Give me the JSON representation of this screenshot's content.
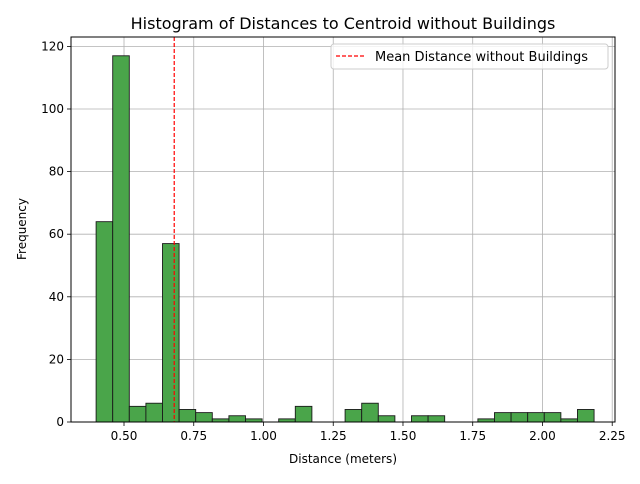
{
  "chart_data": {
    "type": "bar",
    "title": "Histogram of Distances to Centroid without Buildings",
    "xlabel": "Distance (meters)",
    "ylabel": "Frequency",
    "xlim": [
      0.31,
      2.26
    ],
    "ylim": [
      0,
      123
    ],
    "xticks": [
      0.5,
      0.75,
      1.0,
      1.25,
      1.5,
      1.75,
      2.0,
      2.25
    ],
    "xtick_labels": [
      "0.50",
      "0.75",
      "1.00",
      "1.25",
      "1.50",
      "1.75",
      "2.00",
      "2.25"
    ],
    "yticks": [
      0,
      20,
      40,
      60,
      80,
      100,
      120
    ],
    "ytick_labels": [
      "0",
      "20",
      "40",
      "60",
      "80",
      "100",
      "120"
    ],
    "grid": true,
    "legend_position": "top-right",
    "bin_edges": [
      0.4,
      0.4595,
      0.519,
      0.5785,
      0.638,
      0.6975,
      0.757,
      0.8165,
      0.876,
      0.9355,
      0.995,
      1.0545,
      1.114,
      1.1735,
      1.233,
      1.2925,
      1.352,
      1.4115,
      1.471,
      1.5305,
      1.59,
      1.6495,
      1.709,
      1.7685,
      1.828,
      1.8875,
      1.947,
      2.0065,
      2.066,
      2.1255,
      2.185
    ],
    "counts": [
      64,
      117,
      5,
      6,
      57,
      4,
      3,
      1,
      2,
      1,
      0,
      1,
      5,
      0,
      0,
      4,
      6,
      2,
      0,
      2,
      2,
      0,
      0,
      1,
      3,
      3,
      3,
      3,
      1,
      4
    ],
    "mean_line": {
      "x": 0.68,
      "label": "Mean Distance without Buildings",
      "color": "#ff0000"
    },
    "colors": {
      "bar_fill": "#4aa54a",
      "bar_edge": "#1a1a1a",
      "grid": "#b0b0b0"
    }
  }
}
